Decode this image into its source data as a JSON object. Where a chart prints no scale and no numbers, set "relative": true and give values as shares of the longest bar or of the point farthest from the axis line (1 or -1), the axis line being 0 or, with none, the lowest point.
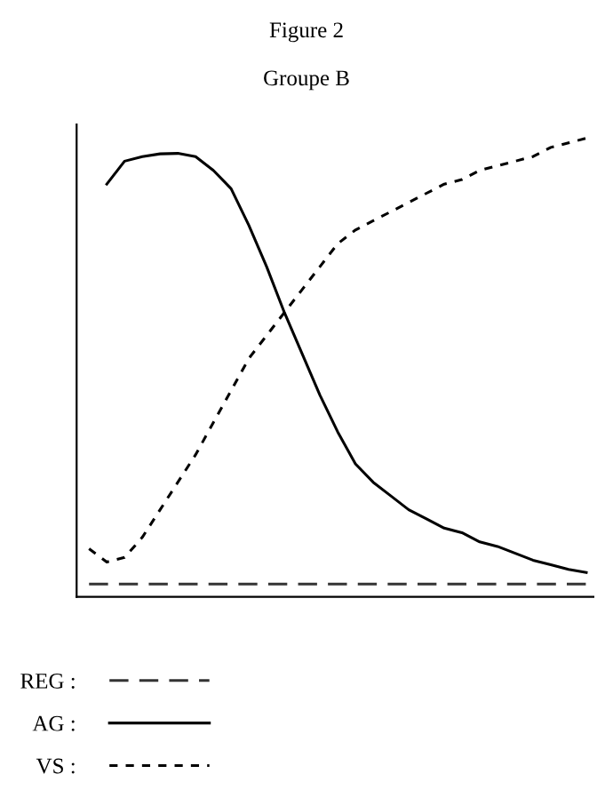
{
  "chart_data": {
    "type": "line",
    "title": "Figure 2",
    "subtitle": "Groupe B",
    "relative": true,
    "legend": "bottom",
    "grid": false,
    "categories": [
      null,
      null,
      null,
      null,
      null,
      null,
      null,
      null,
      null,
      null,
      null,
      null,
      null,
      null,
      null,
      null,
      null,
      null,
      null,
      null,
      null,
      null,
      null,
      null,
      null,
      null,
      null,
      null,
      null
    ],
    "series": [
      {
        "name": "REG :",
        "color": "#333333",
        "line_style": "dashed",
        "values": [
          0.028,
          0.028,
          0.028,
          0.028,
          0.028,
          0.028,
          0.028,
          0.028,
          0.028,
          0.028,
          0.028,
          0.028,
          0.028,
          0.028,
          0.028,
          0.028,
          0.028,
          0.028,
          0.028,
          0.028,
          0.028,
          0.028,
          0.028,
          0.028,
          0.028,
          0.028,
          0.028,
          0.028,
          0.028
        ]
      },
      {
        "name": "AG :",
        "color": "#000000",
        "line_style": "solid",
        "values": [
          null,
          0.9,
          0.95,
          0.96,
          0.966,
          0.967,
          0.96,
          0.93,
          0.89,
          0.81,
          0.72,
          0.62,
          0.53,
          0.44,
          0.36,
          0.29,
          0.25,
          0.22,
          0.19,
          0.17,
          0.15,
          0.14,
          0.12,
          0.11,
          0.095,
          0.08,
          0.07,
          0.06,
          0.053
        ]
      },
      {
        "name": "VS :",
        "color": "#000000",
        "line_style": "dotted",
        "values": [
          0.105,
          0.076,
          0.086,
          0.13,
          0.19,
          0.25,
          0.31,
          0.38,
          0.45,
          0.52,
          0.57,
          0.62,
          0.67,
          0.72,
          0.77,
          0.8,
          0.82,
          0.84,
          0.86,
          0.88,
          0.9,
          0.91,
          0.93,
          0.94,
          0.95,
          0.96,
          0.98,
          0.99,
          1
        ]
      }
    ]
  }
}
